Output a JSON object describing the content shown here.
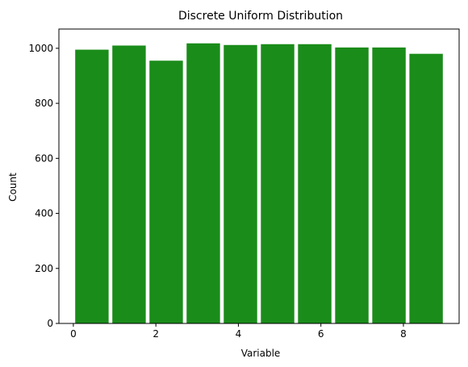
{
  "chart_data": {
    "type": "bar",
    "title": "Discrete Uniform Distribution",
    "xlabel": "Variable",
    "ylabel": "Count",
    "bar_color": "#1a8c1a",
    "grid": false,
    "xlim": [
      -0.35,
      9.35
    ],
    "ylim": [
      0,
      1070
    ],
    "xticks": [
      0,
      2,
      4,
      6,
      8
    ],
    "yticks": [
      0,
      200,
      400,
      600,
      800,
      1000
    ],
    "bins": [
      {
        "start": 0.0,
        "end": 0.9,
        "value": 995
      },
      {
        "start": 0.9,
        "end": 1.8,
        "value": 1010
      },
      {
        "start": 1.8,
        "end": 2.7,
        "value": 955
      },
      {
        "start": 2.7,
        "end": 3.6,
        "value": 1018
      },
      {
        "start": 3.6,
        "end": 4.5,
        "value": 1012
      },
      {
        "start": 4.5,
        "end": 5.4,
        "value": 1015
      },
      {
        "start": 5.4,
        "end": 6.3,
        "value": 1015
      },
      {
        "start": 6.3,
        "end": 7.2,
        "value": 1003
      },
      {
        "start": 7.2,
        "end": 8.1,
        "value": 1003
      },
      {
        "start": 8.1,
        "end": 9.0,
        "value": 980
      }
    ]
  }
}
